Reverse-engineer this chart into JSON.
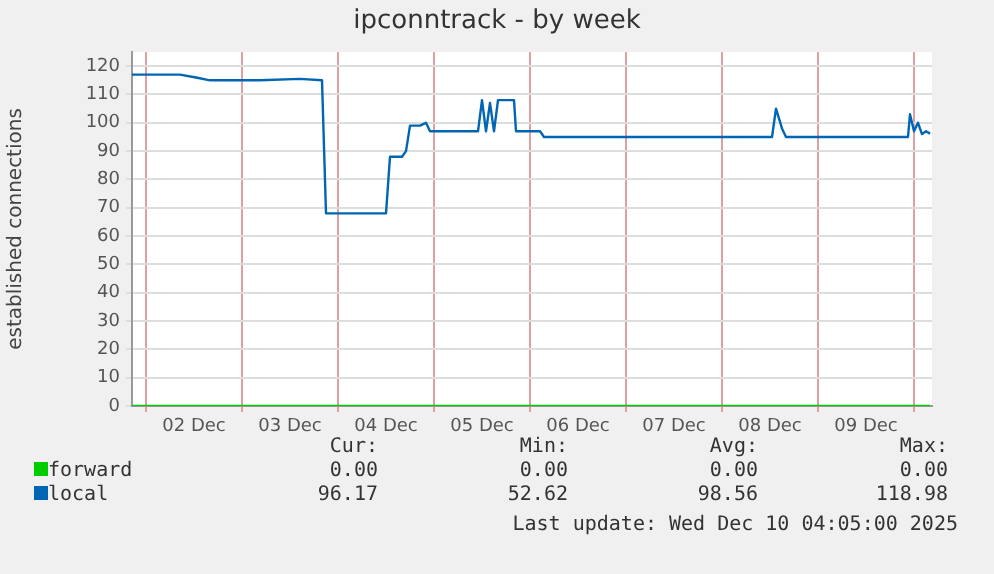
{
  "chart_data": {
    "type": "line",
    "title": "ipconntrack - by week",
    "ylabel": "established connections",
    "x": [
      "2025-12-01T20:30",
      "2025-12-01T22:30",
      "2025-12-02T03:30",
      "2025-12-02T08:30",
      "2025-12-02T12:30",
      "2025-12-02T16:00",
      "2025-12-03T04:30",
      "2025-12-03T14:30",
      "2025-12-03T20:00",
      "2025-12-03T21:00",
      "2025-12-04T05:30",
      "2025-12-04T12:00",
      "2025-12-04T13:00",
      "2025-12-04T16:00",
      "2025-12-04T17:00",
      "2025-12-04T18:00",
      "2025-12-04T20:30",
      "2025-12-04T22:00",
      "2025-12-04T23:00",
      "2025-12-05T11:00",
      "2025-12-05T12:00",
      "2025-12-05T13:00",
      "2025-12-05T14:00",
      "2025-12-05T15:00",
      "2025-12-05T16:00",
      "2025-12-05T20:00",
      "2025-12-05T20:30",
      "2025-12-06T02:30",
      "2025-12-06T03:30",
      "2025-12-08T12:30",
      "2025-12-08T13:30",
      "2025-12-08T15:00",
      "2025-12-08T16:00",
      "2025-12-09T22:30",
      "2025-12-09T23:00",
      "2025-12-10T00:00",
      "2025-12-10T01:00",
      "2025-12-10T02:00",
      "2025-12-10T03:00",
      "2025-12-10T04:00"
    ],
    "series": [
      {
        "name": "forward",
        "color": "#00cc00",
        "values": [
          0,
          0,
          0,
          0,
          0,
          0,
          0,
          0,
          0,
          0,
          0,
          0,
          0,
          0,
          0,
          0,
          0,
          0,
          0,
          0,
          0,
          0,
          0,
          0,
          0,
          0,
          0,
          0,
          0,
          0,
          0,
          0,
          0,
          0,
          0,
          0,
          0,
          0,
          0,
          0
        ]
      },
      {
        "name": "local",
        "color": "#0066b3",
        "values": [
          117,
          117,
          117,
          117,
          116,
          115,
          115,
          115.5,
          115,
          68,
          68,
          68,
          88,
          88,
          90,
          99,
          99,
          100,
          97,
          97,
          108,
          97,
          107,
          97,
          108,
          108,
          97,
          97,
          95,
          95,
          105,
          98,
          95,
          95,
          103,
          97,
          100,
          96,
          97,
          96.17
        ]
      }
    ],
    "xlim": [
      "2025-12-01T20:30",
      "2025-12-10T04:30"
    ],
    "xticks": [
      {
        "value": "2025-12-02T00:00",
        "label": null
      },
      {
        "value": "2025-12-02T12:00",
        "label": "02 Dec"
      },
      {
        "value": "2025-12-03T00:00",
        "label": null
      },
      {
        "value": "2025-12-03T12:00",
        "label": "03 Dec"
      },
      {
        "value": "2025-12-04T00:00",
        "label": null
      },
      {
        "value": "2025-12-04T12:00",
        "label": "04 Dec"
      },
      {
        "value": "2025-12-05T00:00",
        "label": null
      },
      {
        "value": "2025-12-05T12:00",
        "label": "05 Dec"
      },
      {
        "value": "2025-12-06T00:00",
        "label": null
      },
      {
        "value": "2025-12-06T12:00",
        "label": "06 Dec"
      },
      {
        "value": "2025-12-07T00:00",
        "label": null
      },
      {
        "value": "2025-12-07T12:00",
        "label": "07 Dec"
      },
      {
        "value": "2025-12-08T00:00",
        "label": null
      },
      {
        "value": "2025-12-08T12:00",
        "label": "08 Dec"
      },
      {
        "value": "2025-12-09T00:00",
        "label": null
      },
      {
        "value": "2025-12-09T12:00",
        "label": "09 Dec"
      },
      {
        "value": "2025-12-10T00:00",
        "label": null
      }
    ],
    "ylim": [
      0,
      125
    ],
    "yticks": [
      0,
      10,
      20,
      30,
      40,
      50,
      60,
      70,
      80,
      90,
      100,
      110,
      120
    ],
    "grid": true,
    "legend": "bottom",
    "marker": "none",
    "line_style": "solid",
    "annotations": [
      "Cur:",
      "Min:",
      "Avg:",
      "Max:",
      "0.00",
      "0.00",
      "0.00",
      "0.00",
      "96.17",
      "52.62",
      "98.56",
      "118.98",
      "Last update: Wed Dec 10 04:05:00 2025"
    ]
  }
}
